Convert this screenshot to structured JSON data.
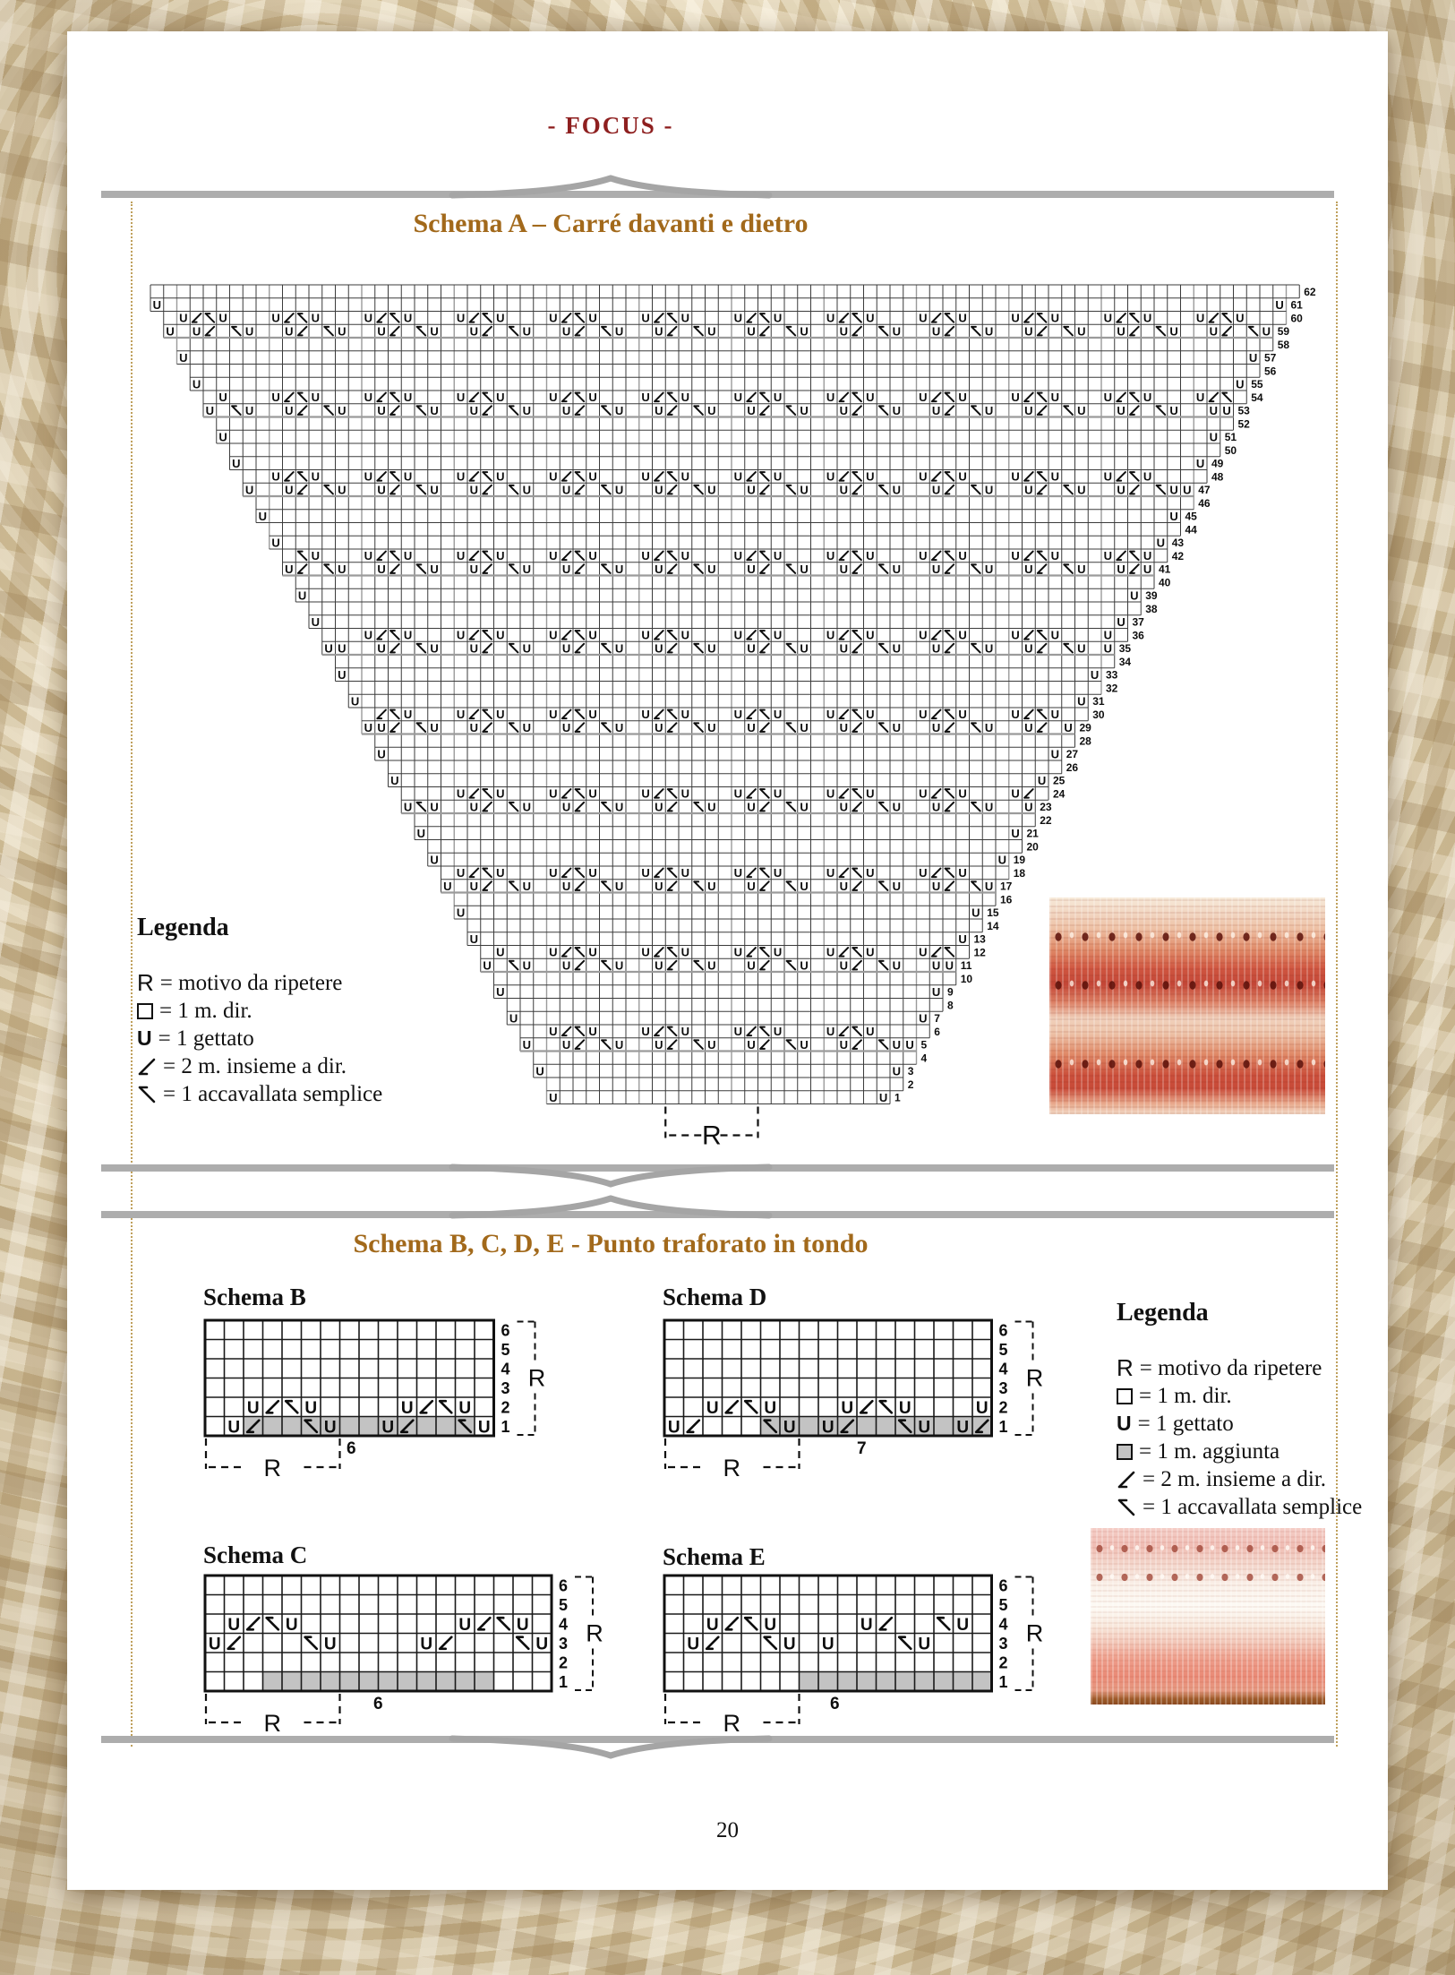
{
  "page": {
    "header": "- FOCUS -",
    "page_number": "20"
  },
  "section_a": {
    "title": "Schema A – Carré davanti e dietro",
    "legend": {
      "heading": "Legenda",
      "items": [
        {
          "symbol": "R",
          "text": "= motivo da ripetere"
        },
        {
          "symbol": "square",
          "text": "= 1 m. dir."
        },
        {
          "symbol": "U",
          "text": "= 1 gettato"
        },
        {
          "symbol": "k2tog",
          "text": "= 2 m. insieme a dir."
        },
        {
          "symbol": "skp",
          "text": "= 1 accavallata semplice"
        }
      ]
    },
    "chart": {
      "rows": 62,
      "cols": 87,
      "row_numbers_from": 1,
      "row_numbers_to": 62,
      "motif": {
        "period": 7,
        "upper_rows_mod6": 0,
        "lower_rows_mod6": 5,
        "upper_tile": {
          "2": "U",
          "3": "/",
          "4": "\\",
          "5": "U"
        },
        "lower_tile": {
          "6": "\\",
          "0": "U",
          "3": "U",
          "4": "/"
        }
      },
      "edge_yarn_over_on_odd_rows": true,
      "repeat_marker": {
        "label": "R",
        "from_col": 39,
        "to_col": 46
      }
    }
  },
  "section_b": {
    "title": "Schema B, C, D, E - Punto traforato in tondo",
    "legend": {
      "heading": "Legenda",
      "items": [
        {
          "symbol": "R",
          "text": "= motivo da ripetere"
        },
        {
          "symbol": "square",
          "text": "= 1 m. dir."
        },
        {
          "symbol": "U",
          "text": "= 1 gettato"
        },
        {
          "symbol": "gray-square",
          "text": "= 1 m. aggiunta"
        },
        {
          "symbol": "k2tog",
          "text": "= 2 m. insieme a dir."
        },
        {
          "symbol": "skp",
          "text": "= 1 accavallata semplice"
        }
      ]
    },
    "schemas": [
      {
        "id": "schB",
        "name": "Schema B",
        "cols": 15,
        "rows": 6,
        "row_numbers": [
          6,
          5,
          4,
          3,
          2,
          1
        ],
        "cells": {
          "2": [
            [
              2,
              "U"
            ],
            [
              3,
              "/"
            ],
            [
              4,
              "\\"
            ],
            [
              5,
              "U"
            ],
            [
              10,
              "U"
            ],
            [
              11,
              "/"
            ],
            [
              12,
              "\\"
            ],
            [
              13,
              "U"
            ]
          ],
          "1": [
            [
              1,
              "U"
            ],
            [
              2,
              "/"
            ],
            [
              5,
              "\\"
            ],
            [
              6,
              "U"
            ],
            [
              9,
              "U"
            ],
            [
              10,
              "/"
            ],
            [
              13,
              "\\"
            ],
            [
              14,
              "U"
            ]
          ]
        },
        "gray_cells": {
          "1": [
            2,
            3,
            4,
            5,
            6,
            7,
            8,
            9,
            10,
            11,
            12,
            13
          ]
        },
        "repeat": {
          "label": "R",
          "count": "6",
          "to_col": 7,
          "count_x": 158
        }
      },
      {
        "id": "schD",
        "name": "Schema D",
        "cols": 17,
        "rows": 6,
        "row_numbers": [
          6,
          5,
          4,
          3,
          2,
          1
        ],
        "cells": {
          "2": [
            [
              2,
              "U"
            ],
            [
              3,
              "/"
            ],
            [
              4,
              "\\"
            ],
            [
              5,
              "U"
            ],
            [
              9,
              "U"
            ],
            [
              10,
              "/"
            ],
            [
              11,
              "\\"
            ],
            [
              12,
              "U"
            ],
            [
              16,
              "U"
            ]
          ],
          "1": [
            [
              0,
              "U"
            ],
            [
              1,
              "/"
            ],
            [
              5,
              "\\"
            ],
            [
              6,
              "U"
            ],
            [
              8,
              "U"
            ],
            [
              9,
              "/"
            ],
            [
              12,
              "\\"
            ],
            [
              13,
              "U"
            ],
            [
              15,
              "U"
            ],
            [
              16,
              "/"
            ]
          ]
        },
        "gray_cells": {
          "1": [
            5,
            6,
            7,
            8,
            9,
            10,
            11,
            12,
            13,
            14,
            15,
            16
          ]
        },
        "repeat": {
          "label": "R",
          "count": "7",
          "to_col": 7,
          "count_x": 215
        }
      },
      {
        "id": "schC",
        "name": "Schema C",
        "cols": 18,
        "rows": 6,
        "row_numbers": [
          6,
          5,
          4,
          3,
          2,
          1
        ],
        "cells": {
          "4": [
            [
              1,
              "U"
            ],
            [
              2,
              "/"
            ],
            [
              3,
              "\\"
            ],
            [
              4,
              "U"
            ],
            [
              13,
              "U"
            ],
            [
              14,
              "/"
            ],
            [
              15,
              "\\"
            ],
            [
              16,
              "U"
            ]
          ],
          "3": [
            [
              0,
              "U"
            ],
            [
              1,
              "/"
            ],
            [
              5,
              "\\"
            ],
            [
              6,
              "U"
            ],
            [
              11,
              "U"
            ],
            [
              12,
              "/"
            ],
            [
              16,
              "\\"
            ],
            [
              17,
              "U"
            ]
          ]
        },
        "gray_cells": {
          "1": [
            3,
            4,
            5,
            6,
            7,
            8,
            9,
            10,
            11,
            12,
            13,
            14
          ]
        },
        "repeat": {
          "label": "R",
          "count": "6",
          "to_col": 7,
          "count_x": 188
        }
      },
      {
        "id": "schE",
        "name": "Schema E",
        "cols": 17,
        "rows": 6,
        "row_numbers": [
          6,
          5,
          4,
          3,
          2,
          1
        ],
        "cells": {
          "4": [
            [
              2,
              "U"
            ],
            [
              3,
              "/"
            ],
            [
              4,
              "\\"
            ],
            [
              5,
              "U"
            ],
            [
              10,
              "U"
            ],
            [
              11,
              "/"
            ],
            [
              14,
              "\\"
            ],
            [
              15,
              "U"
            ]
          ],
          "3": [
            [
              1,
              "U"
            ],
            [
              2,
              "/"
            ],
            [
              5,
              "\\"
            ],
            [
              6,
              "U"
            ],
            [
              8,
              "U"
            ],
            [
              12,
              "\\"
            ],
            [
              13,
              "U"
            ]
          ]
        },
        "gray_cells": {
          "1": [
            7,
            8,
            9,
            10,
            11,
            12,
            13,
            14,
            15,
            16
          ]
        },
        "repeat": {
          "label": "R",
          "count": "6",
          "to_col": 7,
          "count_x": 185
        }
      }
    ]
  }
}
